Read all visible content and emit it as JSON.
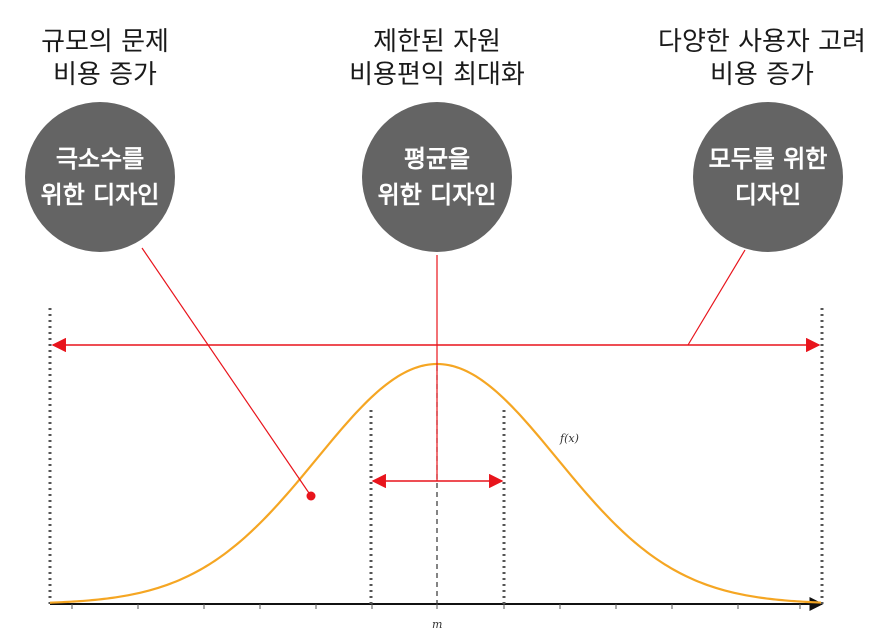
{
  "labels": {
    "left": {
      "line1": "규모의 문제",
      "line2": "비용 증가"
    },
    "center": {
      "line1": "제한된 자원",
      "line2": "비용편익 최대화"
    },
    "right": {
      "line1": "다양한 사용자 고려",
      "line2": "비용 증가"
    }
  },
  "circles": {
    "left": {
      "line1": "극소수를",
      "line2": "위한 디자인"
    },
    "center": {
      "line1": "평균을",
      "line2": "위한 디자인"
    },
    "right": {
      "line1": "모두를 위한",
      "line2": "디자인"
    }
  },
  "curve_label": "f(x)",
  "axis_label": "m",
  "colors": {
    "curve": "#f5a623",
    "arrow": "#e8141c",
    "circle": "#646464",
    "guide": "#555555"
  }
}
